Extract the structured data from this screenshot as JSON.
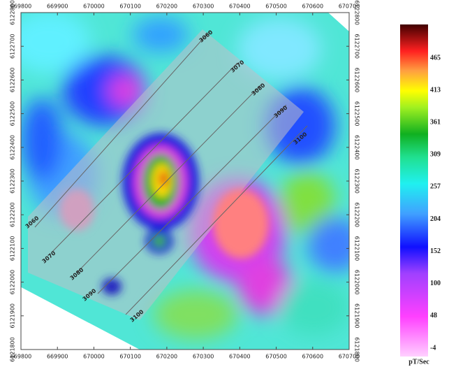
{
  "map": {
    "x_ticks": [
      "669800",
      "669900",
      "670000",
      "670100",
      "670200",
      "670300",
      "670400",
      "670500",
      "670600",
      "670700"
    ],
    "y_ticks": [
      "6122800",
      "6122700",
      "6122600",
      "6122500",
      "6122400",
      "6122300",
      "6122200",
      "6122100",
      "6122000",
      "6121900",
      "6121800"
    ],
    "line_labels_top": [
      "3060",
      "3070",
      "3080",
      "3090",
      "3100"
    ],
    "line_labels_bottom": [
      "3060",
      "3070",
      "3080",
      "3090",
      "3100"
    ]
  },
  "colorbar": {
    "ticks": [
      "465",
      "413",
      "361",
      "309",
      "257",
      "204",
      "152",
      "100",
      "48",
      "-4"
    ],
    "unit": "pT/Sec"
  }
}
